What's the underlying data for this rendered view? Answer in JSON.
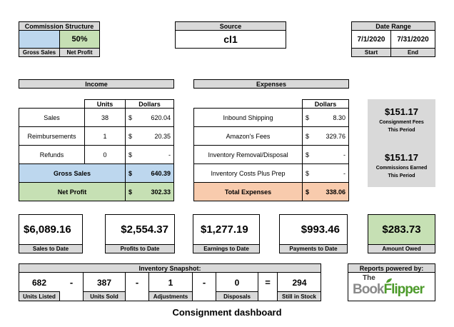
{
  "commission": {
    "title": "Commission Structure",
    "percent": "50%",
    "label_left": "Gross Sales",
    "label_right": "Net Profit"
  },
  "source": {
    "title": "Source",
    "value": "cl1"
  },
  "date_range": {
    "title": "Date Range",
    "start": "7/1/2020",
    "end": "7/31/2020",
    "start_label": "Start",
    "end_label": "End"
  },
  "income": {
    "title": "Income",
    "col_units": "Units",
    "col_dollars": "Dollars",
    "rows": [
      {
        "label": "Sales",
        "units": "38",
        "sym": "$",
        "amount": "620.04"
      },
      {
        "label": "Reimbursements",
        "units": "1",
        "sym": "$",
        "amount": "20.35"
      },
      {
        "label": "Refunds",
        "units": "0",
        "sym": "$",
        "amount": "-"
      }
    ],
    "gross": {
      "label": "Gross Sales",
      "sym": "$",
      "amount": "640.39"
    },
    "net": {
      "label": "Net Profit",
      "sym": "$",
      "amount": "302.33"
    }
  },
  "expenses": {
    "title": "Expenses",
    "col_dollars": "Dollars",
    "rows": [
      {
        "label": "Inbound Shipping",
        "sym": "$",
        "amount": "8.30"
      },
      {
        "label": "Amazon's Fees",
        "sym": "$",
        "amount": "329.76"
      },
      {
        "label": "Inventory Removal/Disposal",
        "sym": "$",
        "amount": "-"
      },
      {
        "label": "Inventory Costs Plus Prep",
        "sym": "$",
        "amount": "-"
      }
    ],
    "total": {
      "label": "Total Expenses",
      "sym": "$",
      "amount": "338.06"
    }
  },
  "side": {
    "fees_value": "$151.17",
    "fees_label1": "Consignment Fees",
    "fees_label2": "This Period",
    "comm_value": "$151.17",
    "comm_label1": "Commissions Earned",
    "comm_label2": "This Period"
  },
  "totals": [
    {
      "value": "$6,089.16",
      "label": "Sales to Date"
    },
    {
      "value": "$2,554.37",
      "label": "Profits to Date"
    },
    {
      "value": "$1,277.19",
      "label": "Earnings to Date"
    },
    {
      "value": "$993.46",
      "label": "Payments to Date"
    },
    {
      "value": "$283.73",
      "label": "Amount Owed"
    }
  ],
  "inventory": {
    "title": "Inventory Snapshot:",
    "items": [
      {
        "value": "682",
        "label": "Units Listed"
      },
      {
        "value": "387",
        "label": "Units Sold"
      },
      {
        "value": "1",
        "label": "Adjustments"
      },
      {
        "value": "0",
        "label": "Disposals"
      },
      {
        "value": "294",
        "label": "Still in Stock"
      }
    ],
    "ops": [
      "-",
      "-",
      "-",
      "="
    ]
  },
  "powered": {
    "title": "Reports powered by:",
    "logo_the": "The",
    "logo_book": "Book",
    "logo_flipper": "Flipper"
  },
  "caption": "Consignment dashboard",
  "colors": {
    "blue": "#bdd7ee",
    "green": "#c6e0b4",
    "orange": "#f8cbad",
    "header_grey": "#d9d9d9",
    "logo_green": "#4c9a2a"
  }
}
